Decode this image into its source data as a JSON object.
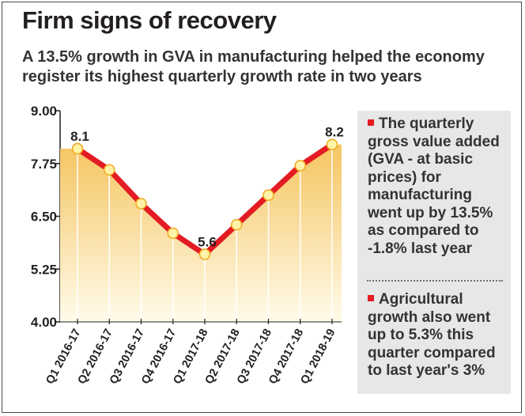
{
  "chart_data": {
    "type": "line",
    "title": "Firm signs of recovery",
    "subtitle": "A 13.5% growth in GVA in manufacturing helped the economy register its highest quarterly growth rate in two years",
    "categories": [
      "Q1 2016-17",
      "Q2 2016-17",
      "Q3 2016-17",
      "Q4 2016-17",
      "Q1 2017-18",
      "Q2 2017-18",
      "Q3 2017-18",
      "Q4 2017-18",
      "Q1 2018-19"
    ],
    "values": [
      8.1,
      7.6,
      6.8,
      6.1,
      5.6,
      6.3,
      7.0,
      7.7,
      8.2
    ],
    "data_labels": [
      {
        "index": 0,
        "text": "8.1"
      },
      {
        "index": 4,
        "text": "5.6"
      },
      {
        "index": 8,
        "text": "8.2"
      }
    ],
    "y_ticks": [
      "9.00",
      "7.75",
      "6.50",
      "5.25",
      "4.00"
    ],
    "ylim": [
      4.0,
      9.0
    ],
    "xlabel": "",
    "ylabel": "",
    "grid": false,
    "legend": "none",
    "colors": {
      "line": "#e31b23",
      "marker_fill": "#fff3a8",
      "marker_stroke": "#f0a81b",
      "area_top": "#f5c561",
      "area_bottom": "#fffbea"
    }
  },
  "notes": [
    {
      "text": "The quarterly gross value added (GVA - at basic prices) for manufacturing went up by 13.5% as compared to -1.8% last year"
    },
    {
      "text": "Agricultural growth also went up to 5.3% this quarter compared to last year's 3%"
    }
  ],
  "colors": {
    "bullet": "#e31b23",
    "panel_bg": "#e7e7e8"
  }
}
